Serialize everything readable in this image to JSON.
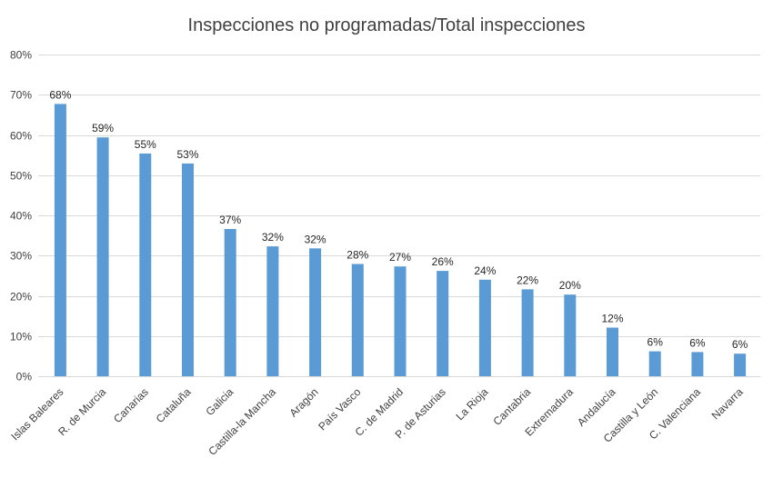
{
  "chart_data": {
    "type": "bar",
    "title": "Inspecciones no programadas/Total inspecciones",
    "xlabel": "",
    "ylabel": "",
    "ylim": [
      0,
      80
    ],
    "y_ticks": [
      "0%",
      "10%",
      "20%",
      "30%",
      "40%",
      "50%",
      "60%",
      "70%",
      "80%"
    ],
    "y_tick_values": [
      0,
      10,
      20,
      30,
      40,
      50,
      60,
      70,
      80
    ],
    "grid": true,
    "categories": [
      "Islas Baleares",
      "R. de Murcia",
      "Canarias",
      "Cataluña",
      "Galicia",
      "Castilla-la Mancha",
      "Aragón",
      "País Vasco",
      "C. de Madrid",
      "P. de Asturias",
      "La Rioja",
      "Cantabria",
      "Extremadura",
      "Andalucía",
      "Castilla y León",
      "C. Valenciana",
      "Navarra"
    ],
    "values": [
      67.7,
      59.4,
      55.4,
      52.9,
      36.6,
      32.3,
      31.8,
      27.9,
      27.3,
      26.2,
      24.0,
      21.6,
      20.3,
      12.1,
      6.2,
      6.0,
      5.6
    ],
    "data_labels": [
      "68%",
      "59%",
      "55%",
      "53%",
      "37%",
      "32%",
      "32%",
      "28%",
      "27%",
      "26%",
      "24%",
      "22%",
      "20%",
      "12%",
      "6%",
      "6%",
      "6%"
    ],
    "colors": {
      "bar": "#5b9bd5"
    }
  }
}
